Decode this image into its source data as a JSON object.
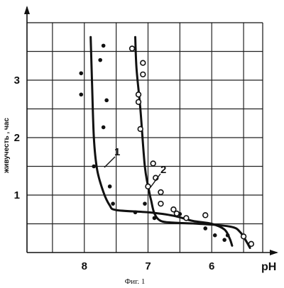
{
  "chart_data": {
    "type": "scatter",
    "title": "",
    "caption": "Фиг. 1",
    "xlabel": "pH",
    "ylabel": "живучесть , час",
    "x_reversed": true,
    "xlim": [
      8.9,
      5.2
    ],
    "ylim": [
      0,
      4.0
    ],
    "x_ticks": [
      "8",
      "7",
      "6"
    ],
    "x_tick_values": [
      8,
      7,
      6
    ],
    "y_ticks": [
      "1",
      "2",
      "3"
    ],
    "y_tick_values": [
      1,
      2,
      3
    ],
    "grid": true,
    "colors": {
      "ink": "#111111",
      "grid": "#222222",
      "background": "#ffffff"
    },
    "series": [
      {
        "name": "1",
        "marker": "filled-dot",
        "curve": [
          [
            7.9,
            3.75
          ],
          [
            7.88,
            3.0
          ],
          [
            7.85,
            2.0
          ],
          [
            7.8,
            1.45
          ],
          [
            7.7,
            1.05
          ],
          [
            7.6,
            0.82
          ],
          [
            7.5,
            0.74
          ],
          [
            7.0,
            0.7
          ],
          [
            6.6,
            0.64
          ],
          [
            6.3,
            0.55
          ],
          [
            6.0,
            0.5
          ],
          [
            5.8,
            0.4
          ],
          [
            5.72,
            0.25
          ],
          [
            5.68,
            0.12
          ]
        ],
        "points": [
          [
            8.05,
            3.12
          ],
          [
            8.05,
            2.75
          ],
          [
            7.75,
            3.35
          ],
          [
            7.7,
            3.6
          ],
          [
            7.65,
            2.65
          ],
          [
            7.7,
            2.18
          ],
          [
            7.85,
            1.5
          ],
          [
            7.6,
            1.15
          ],
          [
            7.55,
            0.85
          ],
          [
            7.2,
            0.7
          ],
          [
            7.05,
            0.85
          ],
          [
            6.9,
            0.6
          ],
          [
            6.5,
            0.67
          ],
          [
            6.1,
            0.42
          ],
          [
            5.95,
            0.3
          ],
          [
            5.8,
            0.22
          ],
          [
            5.75,
            0.3
          ]
        ]
      },
      {
        "name": "2",
        "marker": "open-circle",
        "curve": [
          [
            7.2,
            3.75
          ],
          [
            7.18,
            3.2
          ],
          [
            7.12,
            2.5
          ],
          [
            7.05,
            1.5
          ],
          [
            6.98,
            1.05
          ],
          [
            6.95,
            0.9
          ],
          [
            6.9,
            0.68
          ],
          [
            6.8,
            0.55
          ],
          [
            6.6,
            0.52
          ],
          [
            6.2,
            0.5
          ],
          [
            5.7,
            0.45
          ],
          [
            5.55,
            0.35
          ],
          [
            5.45,
            0.18
          ],
          [
            5.4,
            0.08
          ]
        ],
        "points": [
          [
            7.25,
            3.55
          ],
          [
            7.08,
            3.3
          ],
          [
            7.08,
            3.1
          ],
          [
            7.15,
            2.75
          ],
          [
            7.15,
            2.62
          ],
          [
            7.12,
            2.15
          ],
          [
            6.92,
            1.55
          ],
          [
            6.88,
            1.3
          ],
          [
            7.0,
            1.15
          ],
          [
            6.8,
            1.05
          ],
          [
            6.8,
            0.85
          ],
          [
            6.6,
            0.75
          ],
          [
            6.55,
            0.68
          ],
          [
            6.4,
            0.6
          ],
          [
            6.1,
            0.65
          ],
          [
            5.5,
            0.28
          ],
          [
            5.38,
            0.15
          ]
        ]
      }
    ]
  }
}
